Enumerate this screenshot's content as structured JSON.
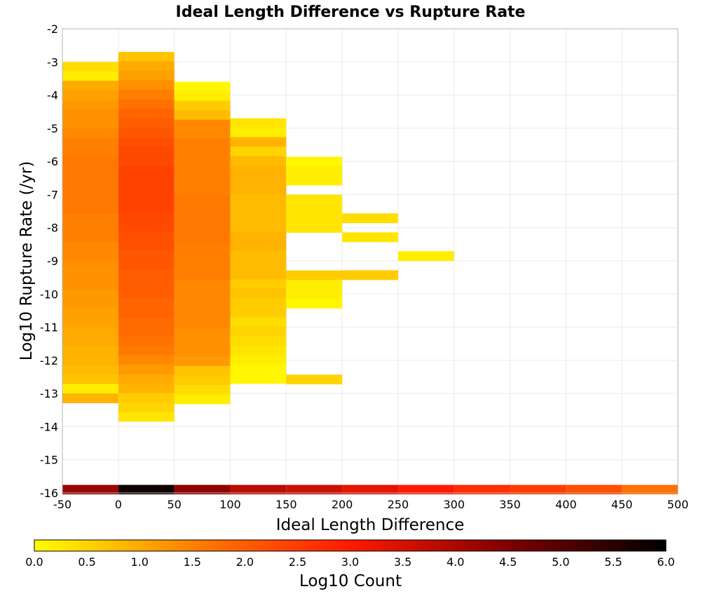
{
  "chart_data": {
    "type": "heatmap",
    "title": "Ideal Length Difference vs Rupture Rate",
    "xlabel": "Ideal Length Difference",
    "ylabel": "Log10 Rupture Rate (/yr)",
    "xlim": [
      -50,
      500
    ],
    "ylim": [
      -16,
      -2
    ],
    "x_ticks": [
      "-50",
      "0",
      "50",
      "100",
      "150",
      "200",
      "250",
      "300",
      "350",
      "400",
      "450",
      "500"
    ],
    "y_ticks": [
      "-2",
      "-3",
      "-4",
      "-5",
      "-6",
      "-7",
      "-8",
      "-9",
      "-10",
      "-11",
      "-12",
      "-13",
      "-14",
      "-15",
      "-16"
    ],
    "grid": true,
    "bin_width_x": 50,
    "bin_height_y": 0.2857,
    "colorbar": {
      "label": "Log10 Count",
      "range": [
        0.0,
        6.0
      ],
      "ticks": [
        "0.0",
        "0.5",
        "1.0",
        "1.5",
        "2.0",
        "2.5",
        "3.0",
        "3.5",
        "4.0",
        "4.5",
        "5.0",
        "5.5",
        "6.0"
      ],
      "colors": [
        "#ffff00",
        "#ff7f00",
        "#ff1a00",
        "#7f0000",
        "#000000"
      ]
    },
    "columns": [
      {
        "x": -25,
        "y_top": -3.0,
        "values": [
          0.4,
          0.2,
          1.0,
          1.1,
          1.2,
          1.3,
          1.3,
          1.4,
          1.5,
          1.5,
          1.6,
          1.6,
          1.6,
          1.6,
          1.6,
          1.6,
          1.5,
          1.5,
          1.5,
          1.4,
          1.4,
          1.3,
          1.3,
          1.3,
          1.2,
          1.2,
          1.1,
          1.1,
          1.0,
          1.0,
          0.9,
          0.9,
          0.8,
          0.7,
          0.2,
          0.9
        ]
      },
      {
        "x": 25,
        "y_top": -2.7,
        "values": [
          0.7,
          1.0,
          1.1,
          1.3,
          1.5,
          1.7,
          1.9,
          2.0,
          2.1,
          2.2,
          2.3,
          2.3,
          2.4,
          2.4,
          2.4,
          2.4,
          2.4,
          2.3,
          2.3,
          2.2,
          2.2,
          2.1,
          2.1,
          2.0,
          2.0,
          2.0,
          1.9,
          1.9,
          1.8,
          1.8,
          1.7,
          1.6,
          1.4,
          1.2,
          1.0,
          0.9,
          0.6,
          0.5,
          0.3
        ]
      },
      {
        "x": 75,
        "y_top": -3.6,
        "values": [
          0.1,
          0.2,
          0.6,
          0.8,
          1.4,
          1.4,
          1.5,
          1.5,
          1.5,
          1.5,
          1.5,
          1.5,
          1.6,
          1.6,
          1.6,
          1.6,
          1.6,
          1.5,
          1.5,
          1.5,
          1.5,
          1.4,
          1.4,
          1.4,
          1.4,
          1.4,
          1.3,
          1.3,
          1.3,
          1.2,
          0.7,
          0.6,
          0.4,
          0.2
        ]
      },
      {
        "x": 125,
        "y_top": -4.7,
        "values": [
          0.3,
          0.2,
          0.9,
          0.5,
          0.8,
          0.9,
          0.9,
          0.9,
          0.8,
          0.8,
          0.8,
          0.8,
          0.9,
          0.9,
          0.8,
          0.8,
          0.8,
          0.6,
          0.7,
          0.6,
          0.6,
          0.4,
          0.5,
          0.4,
          0.3,
          0.2,
          0.1,
          0.1
        ]
      },
      {
        "x": 175,
        "y_top": -5.86,
        "values": [
          0.1,
          0.2,
          0.2,
          null,
          0.3,
          0.3,
          0.3,
          0.3,
          null,
          null,
          null,
          null,
          0.6,
          0.2,
          0.2,
          0.1,
          null,
          null,
          null,
          null,
          null,
          null,
          null,
          0.5
        ]
      },
      {
        "x": 225,
        "y_top": -7.57,
        "values": [
          0.4,
          null,
          0.3,
          null,
          null,
          null,
          0.6
        ]
      },
      {
        "x": 275,
        "y_top": -8.71,
        "values": [
          0.2
        ]
      }
    ],
    "strip": {
      "y": -15.9,
      "values": [
        4.2,
        5.8,
        4.3,
        3.8,
        3.6,
        3.3,
        3.0,
        2.7,
        2.5,
        2.2,
        1.7
      ]
    }
  }
}
